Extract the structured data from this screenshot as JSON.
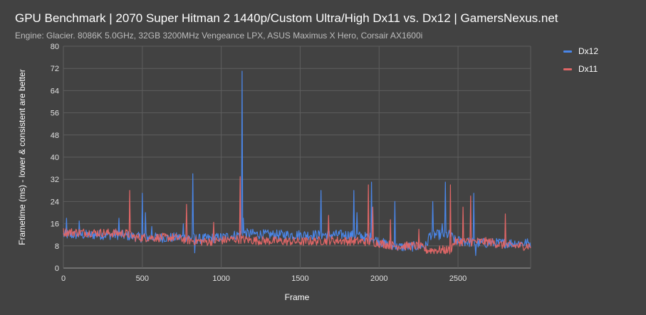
{
  "chart_data": {
    "type": "line",
    "title": "GPU Benchmark | 2070 Super Hitman 2 1440p/Custom Ultra/High Dx11 vs. Dx12 | GamersNexus.net",
    "subtitle": "Engine: Glacier. 8086K 5.0GHz, 32GB 3200MHz Vengeance LPX, ASUS Maximus X Hero, Corsair AX1600i",
    "xlabel": "Frame",
    "ylabel": "Frametime (ms) - lower & consistent are better",
    "xlim": [
      0,
      2960
    ],
    "ylim": [
      0,
      80
    ],
    "x_ticks": [
      0,
      500,
      1000,
      1500,
      2000,
      2500
    ],
    "y_ticks": [
      0,
      8,
      16,
      24,
      32,
      40,
      48,
      56,
      64,
      72,
      80
    ],
    "grid": true,
    "legend_position": "top-right",
    "series": [
      {
        "name": "Dx12",
        "color": "#4a86e8",
        "baseline": [
          [
            0,
            12
          ],
          [
            350,
            12
          ],
          [
            500,
            11
          ],
          [
            800,
            11
          ],
          [
            850,
            10.5
          ],
          [
            1000,
            11
          ],
          [
            1150,
            12.5
          ],
          [
            1300,
            12
          ],
          [
            1600,
            12
          ],
          [
            1800,
            12
          ],
          [
            1950,
            11
          ],
          [
            2000,
            9.5
          ],
          [
            2100,
            7.5
          ],
          [
            2300,
            8
          ],
          [
            2320,
            12
          ],
          [
            2450,
            12
          ],
          [
            2480,
            10
          ],
          [
            2620,
            9
          ],
          [
            2960,
            9
          ]
        ],
        "spikes": [
          [
            20,
            18
          ],
          [
            100,
            17
          ],
          [
            350,
            18
          ],
          [
            500,
            27
          ],
          [
            520,
            20
          ],
          [
            560,
            15
          ],
          [
            760,
            16
          ],
          [
            820,
            34
          ],
          [
            830,
            5.5
          ],
          [
            1130,
            71
          ],
          [
            1140,
            18
          ],
          [
            1630,
            28
          ],
          [
            1840,
            28
          ],
          [
            1860,
            20
          ],
          [
            1950,
            31
          ],
          [
            2100,
            24
          ],
          [
            2340,
            24
          ],
          [
            2400,
            16
          ],
          [
            2420,
            31
          ],
          [
            2600,
            27
          ],
          [
            2610,
            4.5
          ]
        ],
        "noise": 1.8
      },
      {
        "name": "Dx11",
        "color": "#e06666",
        "baseline": [
          [
            0,
            13
          ],
          [
            400,
            12.5
          ],
          [
            460,
            11
          ],
          [
            700,
            11
          ],
          [
            800,
            10
          ],
          [
            900,
            9.5
          ],
          [
            1100,
            10.5
          ],
          [
            1200,
            10
          ],
          [
            1500,
            9.5
          ],
          [
            1700,
            10
          ],
          [
            1950,
            9.5
          ],
          [
            2100,
            8
          ],
          [
            2250,
            8
          ],
          [
            2300,
            6.5
          ],
          [
            2450,
            6.5
          ],
          [
            2480,
            9.5
          ],
          [
            2700,
            9.5
          ],
          [
            2800,
            8
          ],
          [
            2960,
            8
          ]
        ],
        "spikes": [
          [
            420,
            28
          ],
          [
            780,
            23
          ],
          [
            950,
            16.5
          ],
          [
            1120,
            33
          ],
          [
            1680,
            19
          ],
          [
            1930,
            30
          ],
          [
            1960,
            22
          ],
          [
            2070,
            17.5
          ],
          [
            2250,
            14
          ],
          [
            2450,
            30
          ],
          [
            2530,
            22
          ],
          [
            2580,
            26
          ],
          [
            2800,
            19.5
          ]
        ],
        "noise": 1.6
      }
    ]
  }
}
